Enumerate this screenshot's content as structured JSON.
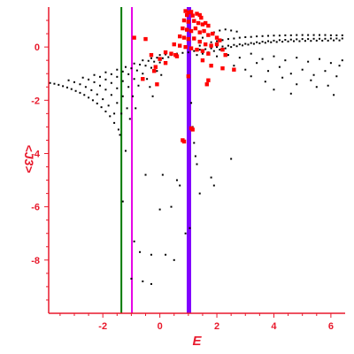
{
  "chart_data": {
    "type": "scatter",
    "xlabel": "E",
    "ylabel": "<J3>",
    "xlim": [
      -3.9,
      6.5
    ],
    "ylim": [
      -10.0,
      1.5
    ],
    "x_ticks": [
      -2,
      0,
      2,
      4,
      6
    ],
    "y_ticks": [
      0,
      -2,
      -4,
      -6,
      -8
    ],
    "x_tick_labels": [
      "-2",
      "0",
      "2",
      "4",
      "6"
    ],
    "y_tick_labels": [
      "0",
      "-2",
      "-4",
      "-6",
      "-8"
    ],
    "grid": false,
    "colors": {
      "axis": "#e8192c",
      "black_points": "#000000",
      "red_points": "#ff0000",
      "green_line": "#007a00",
      "magenta_line": "#e600e6",
      "blue_line": "#8000ff"
    },
    "vertical_lines": [
      {
        "x": -1.35,
        "color": "#007a00"
      },
      {
        "x": -0.98,
        "color": "#e600e6"
      },
      {
        "x": 1.02,
        "color": "#8000ff"
      }
    ],
    "series": [
      {
        "color": "#000000",
        "points": [
          [
            -3.85,
            -1.35
          ],
          [
            -3.7,
            -1.38
          ],
          [
            -3.55,
            -1.42
          ],
          [
            -3.4,
            -1.47
          ],
          [
            -3.25,
            -1.52
          ],
          [
            -3.1,
            -1.58
          ],
          [
            -2.95,
            -1.65
          ],
          [
            -2.8,
            -1.72
          ],
          [
            -2.65,
            -1.8
          ],
          [
            -2.5,
            -1.9
          ],
          [
            -2.35,
            -2.0
          ],
          [
            -2.2,
            -2.12
          ],
          [
            -2.05,
            -2.26
          ],
          [
            -1.9,
            -2.42
          ],
          [
            -1.75,
            -2.6
          ],
          [
            -1.6,
            -2.85
          ],
          [
            -3.2,
            -1.25
          ],
          [
            -3.0,
            -1.32
          ],
          [
            -2.8,
            -1.4
          ],
          [
            -2.6,
            -1.5
          ],
          [
            -2.4,
            -1.62
          ],
          [
            -2.2,
            -1.78
          ],
          [
            -2.0,
            -1.96
          ],
          [
            -1.8,
            -2.2
          ],
          [
            -1.6,
            -2.5
          ],
          [
            -1.45,
            -3.1
          ],
          [
            -2.7,
            -1.15
          ],
          [
            -2.5,
            -1.22
          ],
          [
            -2.3,
            -1.32
          ],
          [
            -2.1,
            -1.45
          ],
          [
            -1.9,
            -1.6
          ],
          [
            -1.7,
            -1.8
          ],
          [
            -1.5,
            -2.1
          ],
          [
            -1.35,
            -2.5
          ],
          [
            -2.3,
            -1.05
          ],
          [
            -2.1,
            -1.12
          ],
          [
            -1.9,
            -1.22
          ],
          [
            -1.7,
            -1.35
          ],
          [
            -1.5,
            -1.55
          ],
          [
            -1.3,
            -1.85
          ],
          [
            -1.15,
            -2.3
          ],
          [
            -1.05,
            -2.7
          ],
          [
            -1.9,
            -0.95
          ],
          [
            -1.7,
            -1.02
          ],
          [
            -1.5,
            -1.12
          ],
          [
            -1.3,
            -1.28
          ],
          [
            -1.1,
            -1.5
          ],
          [
            -0.95,
            -1.85
          ],
          [
            -0.85,
            -2.3
          ],
          [
            -1.5,
            -0.85
          ],
          [
            -1.3,
            -0.92
          ],
          [
            -1.1,
            -1.02
          ],
          [
            -0.9,
            -1.2
          ],
          [
            -0.75,
            -1.45
          ],
          [
            -1.2,
            -0.75
          ],
          [
            -1.0,
            -0.8
          ],
          [
            -0.8,
            -0.88
          ],
          [
            -0.6,
            -1.0
          ],
          [
            -0.45,
            -1.2
          ],
          [
            -0.35,
            -1.5
          ],
          [
            -0.25,
            -1.85
          ],
          [
            -0.9,
            -0.62
          ],
          [
            -0.7,
            -0.66
          ],
          [
            -0.5,
            -0.7
          ],
          [
            -0.3,
            -0.78
          ],
          [
            -0.1,
            -0.9
          ],
          [
            0.05,
            -1.05
          ],
          [
            -0.6,
            -0.5
          ],
          [
            -0.4,
            -0.52
          ],
          [
            -0.2,
            -0.55
          ],
          [
            0.0,
            -0.58
          ],
          [
            0.2,
            -0.6
          ],
          [
            -0.3,
            -0.42
          ],
          [
            -0.1,
            -0.4
          ],
          [
            0.1,
            -0.42
          ],
          [
            0.3,
            -0.38
          ],
          [
            0.0,
            -0.3
          ],
          [
            0.2,
            -0.28
          ],
          [
            0.4,
            -0.3
          ],
          [
            0.6,
            -0.25
          ],
          [
            0.8,
            -0.22
          ],
          [
            1.0,
            -0.2
          ],
          [
            1.2,
            -0.15
          ],
          [
            1.4,
            -0.1
          ],
          [
            1.6,
            -0.08
          ],
          [
            1.8,
            -0.05
          ],
          [
            2.0,
            0.0
          ],
          [
            2.2,
            0.02
          ],
          [
            2.4,
            0.05
          ],
          [
            2.6,
            0.08
          ],
          [
            2.8,
            0.1
          ],
          [
            3.0,
            0.12
          ],
          [
            3.2,
            0.15
          ],
          [
            3.4,
            0.18
          ],
          [
            3.6,
            0.2
          ],
          [
            3.8,
            0.22
          ],
          [
            4.0,
            0.24
          ],
          [
            4.2,
            0.26
          ],
          [
            4.4,
            0.27
          ],
          [
            4.6,
            0.28
          ],
          [
            4.8,
            0.29
          ],
          [
            5.0,
            0.3
          ],
          [
            5.2,
            0.3
          ],
          [
            5.4,
            0.31
          ],
          [
            5.6,
            0.31
          ],
          [
            5.8,
            0.31
          ],
          [
            6.0,
            0.32
          ],
          [
            6.2,
            0.32
          ],
          [
            6.4,
            0.32
          ],
          [
            1.3,
            -0.3
          ],
          [
            1.5,
            -0.25
          ],
          [
            1.7,
            -0.2
          ],
          [
            1.9,
            -0.15
          ],
          [
            2.1,
            -0.1
          ],
          [
            2.3,
            -0.05
          ],
          [
            2.5,
            0.0
          ],
          [
            2.7,
            0.03
          ],
          [
            2.9,
            0.06
          ],
          [
            3.1,
            0.09
          ],
          [
            3.3,
            0.12
          ],
          [
            3.5,
            0.14
          ],
          [
            3.7,
            0.16
          ],
          [
            3.9,
            0.18
          ],
          [
            4.1,
            0.19
          ],
          [
            4.3,
            0.2
          ],
          [
            4.5,
            0.21
          ],
          [
            4.7,
            0.22
          ],
          [
            4.9,
            0.22
          ],
          [
            5.1,
            0.23
          ],
          [
            5.3,
            0.23
          ],
          [
            5.5,
            0.24
          ],
          [
            5.7,
            0.24
          ],
          [
            5.9,
            0.24
          ],
          [
            6.1,
            0.25
          ],
          [
            6.3,
            0.25
          ],
          [
            1.4,
            0.05
          ],
          [
            1.6,
            0.12
          ],
          [
            1.8,
            0.18
          ],
          [
            2.0,
            0.22
          ],
          [
            2.2,
            0.26
          ],
          [
            2.4,
            0.3
          ],
          [
            2.6,
            0.32
          ],
          [
            2.8,
            0.35
          ],
          [
            3.0,
            0.37
          ],
          [
            3.2,
            0.38
          ],
          [
            3.4,
            0.4
          ],
          [
            3.6,
            0.41
          ],
          [
            3.8,
            0.42
          ],
          [
            4.0,
            0.43
          ],
          [
            4.2,
            0.43
          ],
          [
            4.4,
            0.44
          ],
          [
            4.6,
            0.44
          ],
          [
            4.8,
            0.45
          ],
          [
            5.0,
            0.45
          ],
          [
            5.2,
            0.45
          ],
          [
            5.4,
            0.45
          ],
          [
            5.6,
            0.45
          ],
          [
            5.8,
            0.45
          ],
          [
            6.0,
            0.44
          ],
          [
            6.2,
            0.44
          ],
          [
            6.4,
            0.44
          ],
          [
            1.5,
            0.35
          ],
          [
            1.7,
            0.45
          ],
          [
            1.9,
            0.55
          ],
          [
            2.1,
            0.62
          ],
          [
            2.3,
            0.66
          ],
          [
            2.5,
            0.62
          ],
          [
            2.7,
            0.58
          ],
          [
            2.0,
            -0.35
          ],
          [
            2.4,
            -0.3
          ],
          [
            2.8,
            -0.4
          ],
          [
            3.2,
            -0.25
          ],
          [
            3.6,
            -0.45
          ],
          [
            4.0,
            -0.35
          ],
          [
            4.4,
            -0.5
          ],
          [
            4.8,
            -0.4
          ],
          [
            5.2,
            -0.55
          ],
          [
            5.6,
            -0.45
          ],
          [
            6.0,
            -0.6
          ],
          [
            6.4,
            -0.5
          ],
          [
            2.6,
            -0.7
          ],
          [
            3.0,
            -0.85
          ],
          [
            3.4,
            -0.6
          ],
          [
            3.8,
            -0.9
          ],
          [
            4.2,
            -0.75
          ],
          [
            4.6,
            -1.0
          ],
          [
            5.0,
            -0.85
          ],
          [
            5.4,
            -1.05
          ],
          [
            5.8,
            -0.9
          ],
          [
            6.2,
            -1.1
          ],
          [
            3.2,
            -1.1
          ],
          [
            3.7,
            -1.3
          ],
          [
            4.3,
            -1.15
          ],
          [
            4.8,
            -1.4
          ],
          [
            5.3,
            -1.25
          ],
          [
            5.9,
            -1.45
          ],
          [
            6.3,
            -0.7
          ],
          [
            4.0,
            -1.6
          ],
          [
            4.6,
            -1.75
          ],
          [
            5.5,
            -1.5
          ],
          [
            6.1,
            -1.8
          ],
          [
            1.1,
            -2.1
          ],
          [
            1.15,
            -3.0
          ],
          [
            1.2,
            -3.6
          ],
          [
            1.25,
            -4.1
          ],
          [
            1.3,
            -4.4
          ],
          [
            1.4,
            -5.5
          ],
          [
            1.05,
            -6.8
          ],
          [
            0.9,
            -7.0
          ],
          [
            -0.5,
            -4.8
          ],
          [
            0.1,
            -4.8
          ],
          [
            0.6,
            -5.0
          ],
          [
            0.7,
            -5.2
          ],
          [
            1.8,
            -4.9
          ],
          [
            1.9,
            -5.2
          ],
          [
            2.5,
            -4.2
          ],
          [
            0.0,
            -6.1
          ],
          [
            0.4,
            -6.0
          ],
          [
            -1.3,
            -5.8
          ],
          [
            -0.9,
            -7.3
          ],
          [
            -0.7,
            -7.7
          ],
          [
            -0.3,
            -7.8
          ],
          [
            0.2,
            -7.8
          ],
          [
            0.5,
            -8.0
          ],
          [
            -1.0,
            -8.7
          ],
          [
            -0.6,
            -8.8
          ],
          [
            -0.3,
            -8.9
          ],
          [
            -1.4,
            -3.3
          ],
          [
            -1.2,
            -3.9
          ]
        ]
      },
      {
        "color": "#ff0000",
        "points": [
          [
            0.9,
            1.35
          ],
          [
            1.0,
            1.3
          ],
          [
            1.1,
            1.32
          ],
          [
            0.95,
            1.2
          ],
          [
            1.15,
            1.18
          ],
          [
            1.3,
            1.25
          ],
          [
            1.4,
            1.2
          ],
          [
            1.45,
            1.1
          ],
          [
            0.85,
            1.0
          ],
          [
            1.0,
            0.95
          ],
          [
            1.2,
            0.98
          ],
          [
            1.35,
            0.9
          ],
          [
            1.5,
            0.85
          ],
          [
            1.6,
            0.9
          ],
          [
            1.7,
            0.8
          ],
          [
            0.8,
            0.7
          ],
          [
            0.95,
            0.65
          ],
          [
            1.1,
            0.6
          ],
          [
            1.25,
            0.7
          ],
          [
            1.4,
            0.55
          ],
          [
            1.55,
            0.6
          ],
          [
            1.7,
            0.45
          ],
          [
            1.85,
            0.5
          ],
          [
            2.0,
            0.35
          ],
          [
            2.1,
            0.25
          ],
          [
            0.7,
            0.4
          ],
          [
            0.85,
            0.35
          ],
          [
            1.0,
            0.3
          ],
          [
            1.2,
            0.32
          ],
          [
            1.4,
            0.2
          ],
          [
            1.6,
            0.1
          ],
          [
            1.8,
            0.05
          ],
          [
            2.0,
            0.1
          ],
          [
            2.2,
            -0.1
          ],
          [
            2.3,
            -0.3
          ],
          [
            0.5,
            0.1
          ],
          [
            0.7,
            0.05
          ],
          [
            0.9,
            0.0
          ],
          [
            1.1,
            -0.05
          ],
          [
            1.3,
            -0.1
          ],
          [
            1.5,
            -0.15
          ],
          [
            1.7,
            -0.25
          ],
          [
            0.2,
            -0.2
          ],
          [
            0.4,
            -0.25
          ],
          [
            0.55,
            -0.3
          ],
          [
            0.6,
            -0.35
          ],
          [
            1.5,
            -0.5
          ],
          [
            1.8,
            -0.7
          ],
          [
            -0.3,
            -0.3
          ],
          [
            0.0,
            -0.45
          ],
          [
            0.2,
            -0.6
          ],
          [
            -0.15,
            -0.75
          ],
          [
            -0.5,
            0.3
          ],
          [
            -0.9,
            0.35
          ],
          [
            -0.2,
            -0.9
          ],
          [
            -0.6,
            -1.2
          ],
          [
            -0.1,
            -1.4
          ],
          [
            1.0,
            -1.1
          ],
          [
            1.7,
            -1.25
          ],
          [
            1.65,
            -1.4
          ],
          [
            2.6,
            -0.85
          ],
          [
            2.2,
            -0.8
          ],
          [
            0.8,
            -3.5
          ],
          [
            0.85,
            -3.55
          ],
          [
            1.1,
            -3.05
          ],
          [
            1.15,
            -3.1
          ]
        ]
      }
    ]
  }
}
